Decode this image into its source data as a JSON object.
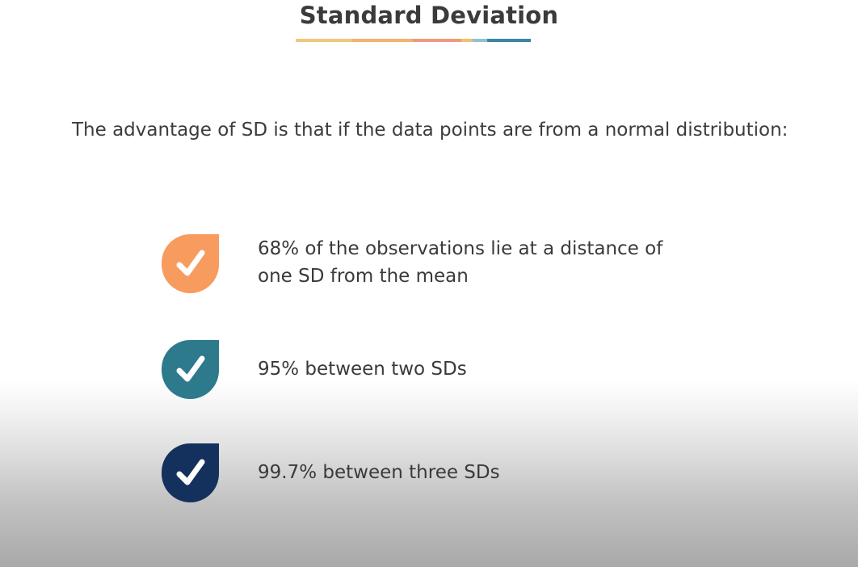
{
  "slide": {
    "title": "Standard Deviation",
    "intro": "The advantage of SD is that if the data points are from a normal distribution:",
    "items": [
      {
        "line1": "68% of the observations lie at a distance of",
        "line2": "one SD from the mean",
        "icon": "check-icon",
        "color": "#F89B5E"
      },
      {
        "line1": "95% between two SDs",
        "icon": "check-icon",
        "color": "#2C7A8C"
      },
      {
        "line1": "99.7% between three SDs",
        "icon": "check-icon",
        "color": "#13315C"
      }
    ]
  },
  "colors": {
    "underline": [
      "#F3C77A",
      "#F5B16E",
      "#EE9A7A",
      "#F0C074",
      "#8FC3D3",
      "#3A86A8"
    ]
  }
}
